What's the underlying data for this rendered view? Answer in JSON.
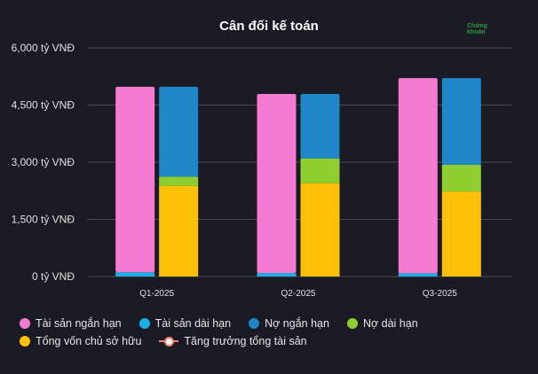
{
  "chart_data": {
    "type": "bar",
    "title": "Cân đối kế toán",
    "categories": [
      "Q1-2025",
      "Q2-2025",
      "Q3-2025"
    ],
    "y_ticks": [
      "0 tỷ VNĐ",
      "1,500 tỷ VNĐ",
      "3,000 tỷ VNĐ",
      "4,500 tỷ VNĐ",
      "6,000 tỷ VNĐ"
    ],
    "ylim": [
      0,
      6000
    ],
    "grid": true,
    "legend_position": "bottom",
    "stacks": [
      {
        "name": "assets",
        "series": [
          {
            "name": "Tài sản dài hạn",
            "color": "#1aaee8",
            "values": [
              110,
              90,
              85
            ]
          },
          {
            "name": "Tài sản ngắn hạn",
            "color": "#f57bd2",
            "values": [
              4870,
              4700,
              5120
            ]
          }
        ]
      },
      {
        "name": "capital",
        "series": [
          {
            "name": "Tổng vốn chủ sở hữu",
            "color": "#ffc107",
            "values": [
              2380,
              2450,
              2230
            ]
          },
          {
            "name": "Nợ dài hạn",
            "color": "#8fce2f",
            "values": [
              240,
              650,
              700
            ]
          },
          {
            "name": "Nợ ngắn hạn",
            "color": "#1f86c8",
            "values": [
              2360,
              1690,
              2275
            ]
          }
        ]
      }
    ],
    "legend": [
      {
        "label": "Tài sản ngắn hạn",
        "color": "#f57bd2",
        "marker": "dot"
      },
      {
        "label": "Tài sản dài hạn",
        "color": "#1aaee8",
        "marker": "dot"
      },
      {
        "label": "Nợ ngắn hạn",
        "color": "#1f86c8",
        "marker": "dot"
      },
      {
        "label": "Nợ dài hạn",
        "color": "#8fce2f",
        "marker": "dot"
      },
      {
        "label": "Tổng vốn chủ sở hữu",
        "color": "#ffc107",
        "marker": "dot"
      },
      {
        "label": "Tăng trưởng tổng tài sản",
        "color": "#f08070",
        "marker": "line"
      }
    ]
  },
  "watermark": {
    "line1": "Chứng",
    "line2": "khoán"
  }
}
